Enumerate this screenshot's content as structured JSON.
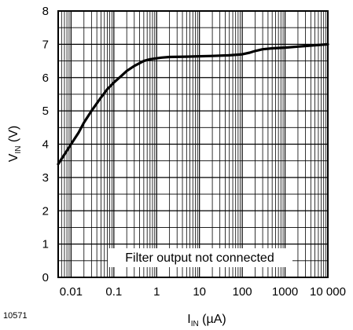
{
  "chart_data": {
    "type": "line",
    "x_scale": "log",
    "xlim": [
      0.005,
      10000
    ],
    "ylim": [
      0,
      8
    ],
    "grid": true,
    "x_ticks": [
      0.01,
      0.1,
      1,
      10,
      100,
      1000,
      10000
    ],
    "x_tick_labels": [
      "0.01",
      "0.1",
      "1",
      "10",
      "100",
      "1000",
      "10 000"
    ],
    "y_ticks": [
      0,
      1,
      2,
      3,
      4,
      5,
      6,
      7,
      8
    ],
    "y_tick_labels": [
      "0",
      "1",
      "2",
      "3",
      "4",
      "5",
      "6",
      "7",
      "8"
    ],
    "xlabel": {
      "main": "I",
      "sub": "IN",
      "unit": " (µA)"
    },
    "ylabel": {
      "main": "V",
      "sub": "IN",
      "unit": " (V)"
    },
    "annotation": "Filter output not connected",
    "figure_id": "10571",
    "series": [
      {
        "x": [
          0.005,
          0.0075,
          0.01,
          0.015,
          0.02,
          0.03,
          0.05,
          0.07,
          0.1,
          0.15,
          0.2,
          0.3,
          0.5,
          0.7,
          1,
          1.3,
          2,
          5,
          10,
          20,
          50,
          100,
          150,
          200,
          300,
          500,
          1000,
          2000,
          5000,
          10000
        ],
        "y": [
          3.4,
          3.75,
          4.0,
          4.35,
          4.65,
          5.0,
          5.4,
          5.65,
          5.85,
          6.05,
          6.2,
          6.35,
          6.5,
          6.55,
          6.58,
          6.6,
          6.62,
          6.63,
          6.64,
          6.65,
          6.67,
          6.7,
          6.75,
          6.8,
          6.85,
          6.88,
          6.9,
          6.93,
          6.97,
          7.0
        ]
      }
    ]
  }
}
